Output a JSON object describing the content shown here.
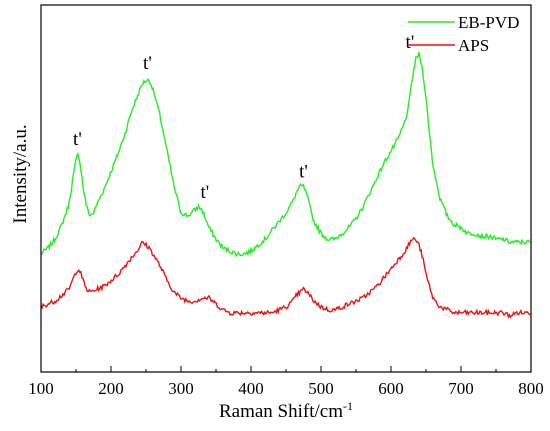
{
  "chart_data": {
    "type": "line",
    "xlabel": "Raman Shift/cm",
    "xlabel_sup": "-1",
    "ylabel": "Intensity/a.u.",
    "xlim": [
      100,
      800
    ],
    "ylim": [
      0,
      100
    ],
    "x_ticks": [
      100,
      200,
      300,
      400,
      500,
      600,
      700,
      800
    ],
    "y_ticks_shown": false,
    "grid": false,
    "legend_position": "top-right",
    "series": [
      {
        "name": "EB-PVD",
        "color": "#22ee22",
        "x": [
          100,
          110,
          120,
          130,
          140,
          145,
          150,
          153,
          156,
          160,
          165,
          170,
          175,
          180,
          190,
          200,
          210,
          220,
          230,
          240,
          245,
          250,
          255,
          260,
          270,
          280,
          290,
          300,
          310,
          315,
          320,
          325,
          330,
          335,
          340,
          350,
          360,
          370,
          380,
          390,
          400,
          410,
          420,
          430,
          440,
          450,
          460,
          465,
          470,
          475,
          480,
          485,
          490,
          500,
          510,
          520,
          530,
          540,
          550,
          560,
          570,
          580,
          590,
          600,
          610,
          620,
          625,
          630,
          635,
          640,
          645,
          650,
          655,
          660,
          670,
          680,
          690,
          700,
          710,
          720,
          730,
          740,
          750,
          760,
          770,
          780,
          790,
          800
        ],
        "values": [
          33,
          35,
          38,
          43,
          50,
          58,
          65,
          67,
          64,
          56,
          49,
          46,
          47,
          50,
          55,
          61,
          67,
          74,
          82,
          88,
          91,
          92,
          92,
          89,
          80,
          68,
          56,
          47,
          46,
          47,
          48,
          49,
          48,
          45,
          42,
          38,
          35,
          34,
          33,
          33,
          34,
          36,
          38,
          41,
          44,
          47,
          51,
          54,
          56,
          56,
          53,
          48,
          44,
          40,
          38,
          38,
          40,
          42,
          45,
          49,
          54,
          59,
          64,
          68,
          72,
          78,
          83,
          92,
          99,
          101,
          96,
          86,
          74,
          63,
          52,
          46,
          43,
          42,
          40,
          40,
          39,
          39,
          38,
          38,
          37,
          37,
          37,
          37
        ]
      },
      {
        "name": "APS",
        "color": "#ee1111",
        "x": [
          100,
          110,
          120,
          130,
          140,
          145,
          150,
          153,
          156,
          160,
          165,
          170,
          180,
          190,
          200,
          210,
          220,
          230,
          240,
          245,
          250,
          255,
          260,
          270,
          280,
          290,
          300,
          310,
          320,
          330,
          340,
          350,
          360,
          370,
          380,
          390,
          400,
          410,
          420,
          430,
          440,
          450,
          460,
          465,
          470,
          475,
          480,
          490,
          500,
          510,
          520,
          530,
          540,
          550,
          560,
          570,
          580,
          590,
          600,
          610,
          620,
          625,
          630,
          635,
          640,
          645,
          650,
          660,
          670,
          680,
          690,
          700,
          710,
          720,
          730,
          740,
          750,
          760,
          770,
          780,
          790,
          800
        ],
        "values": [
          15,
          16,
          17,
          19,
          21,
          24,
          27,
          28,
          27,
          24,
          21,
          20,
          21,
          22,
          24,
          26,
          29,
          32,
          35,
          37,
          36,
          35,
          33,
          29,
          24,
          20,
          18,
          17,
          17,
          18,
          18,
          16,
          14,
          13,
          13,
          13,
          13,
          13,
          13,
          13,
          14,
          15,
          17,
          19,
          20,
          21,
          20,
          17,
          15,
          14,
          14,
          15,
          16,
          17,
          18,
          20,
          22,
          25,
          28,
          31,
          34,
          36,
          38,
          38,
          36,
          32,
          26,
          18,
          15,
          14,
          13,
          13,
          13,
          13,
          13,
          13,
          13,
          13,
          12,
          13,
          13,
          13
        ]
      }
    ],
    "annotations": [
      {
        "text": "t'",
        "x": 152,
        "y": 70
      },
      {
        "text": "t'",
        "x": 252,
        "y": 96
      },
      {
        "text": "t'",
        "x": 334,
        "y": 52
      },
      {
        "text": "t'",
        "x": 475,
        "y": 59
      },
      {
        "text": "t'",
        "x": 627,
        "y": 103
      }
    ]
  }
}
